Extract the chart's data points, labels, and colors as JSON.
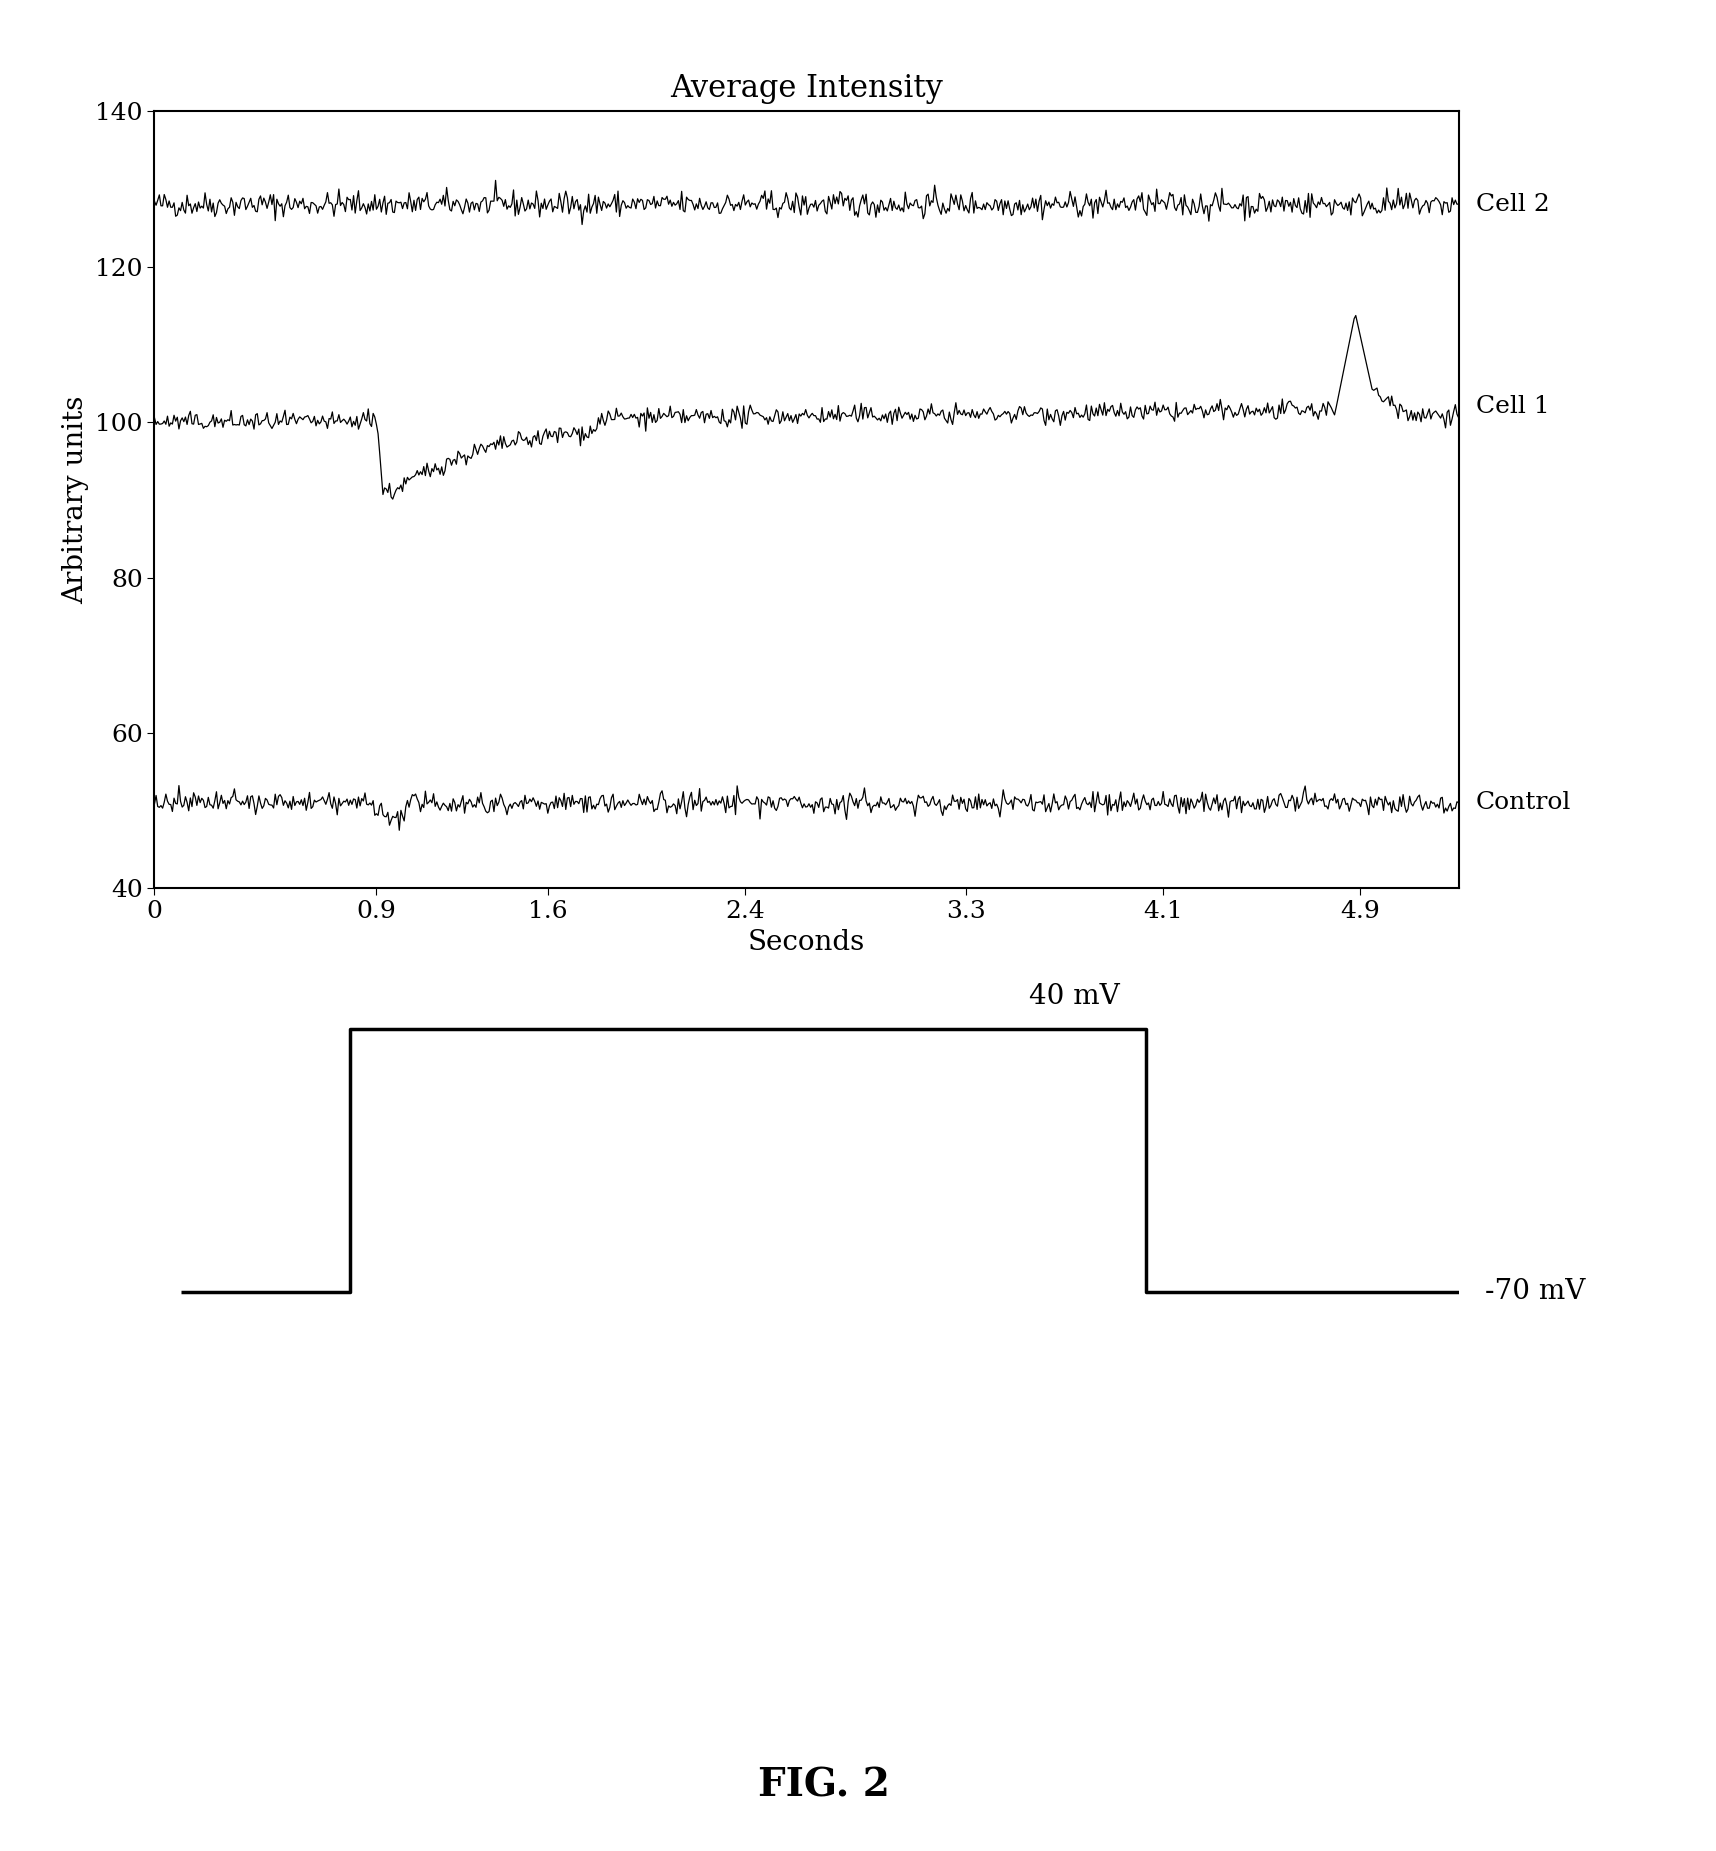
{
  "title": "Average Intensity",
  "xlabel": "Seconds",
  "ylabel": "Arbitrary units",
  "xlim": [
    0,
    5.3
  ],
  "ylim": [
    40,
    140
  ],
  "xticks": [
    0,
    0.9,
    1.6,
    2.4,
    3.3,
    4.1,
    4.9
  ],
  "yticks": [
    40,
    60,
    80,
    100,
    120,
    140
  ],
  "cell2_base": 128,
  "cell2_noise": 0.8,
  "cell1_base": 100,
  "cell1_dip_val": 91,
  "cell1_spike_val": 114,
  "control_base": 51,
  "control_noise": 0.7,
  "fig2_label": "FIG. 2",
  "label_cell2": "Cell 2",
  "label_cell1": "Cell 1",
  "label_control": "Control",
  "label_40mV": "40 mV",
  "label_neg70mV": "-70 mV",
  "bg_color": "#ffffff",
  "line_color": "#000000",
  "fontsize_title": 22,
  "fontsize_labels": 20,
  "fontsize_ticks": 18,
  "fontsize_legend": 18,
  "fontsize_fig2": 28
}
